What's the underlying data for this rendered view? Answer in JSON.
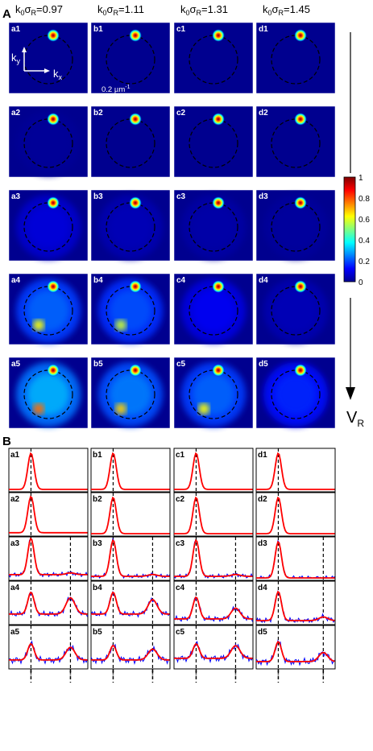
{
  "panel_a": {
    "label": "A",
    "columns": [
      {
        "id": "a",
        "k0sigmaR": "0.97"
      },
      {
        "id": "b",
        "k0sigmaR": "1.11"
      },
      {
        "id": "c",
        "k0sigmaR": "1.31"
      },
      {
        "id": "d",
        "k0sigmaR": "1.45"
      }
    ],
    "rows": [
      "1",
      "2",
      "3",
      "4",
      "5"
    ],
    "axis_ky": "k",
    "axis_ky_sub": "y",
    "axis_kx": "k",
    "axis_kx_sub": "x",
    "scalebar": "0.2 µm",
    "scalebar_sup": "-1",
    "arrow_label": "V",
    "arrow_label_sub": "R",
    "colorbar": {
      "ticks": [
        "1",
        "0.8",
        "0.6",
        "0.4",
        "0.2",
        "0"
      ],
      "colors": [
        "#7f0000",
        "#ff0000",
        "#ff8000",
        "#ffff00",
        "#80ff80",
        "#00ffff",
        "#0080ff",
        "#0000ff",
        "#00008f"
      ]
    },
    "background_level": [
      [
        0.0,
        0.0,
        0.0,
        0.0
      ],
      [
        0.02,
        0.0,
        0.0,
        0.0
      ],
      [
        0.15,
        0.08,
        0.05,
        0.03
      ],
      [
        0.45,
        0.4,
        0.2,
        0.08
      ],
      [
        0.6,
        0.5,
        0.45,
        0.3
      ]
    ]
  },
  "panel_b": {
    "label": "B",
    "rows": [
      "1",
      "2",
      "3",
      "4",
      "5"
    ],
    "columns": [
      "a",
      "b",
      "c",
      "d"
    ],
    "line_colors": {
      "data": "#0000ff",
      "fit": "#ff0000",
      "marker": "#000000"
    },
    "side_peak_height": [
      [
        0.0,
        0.0,
        0.0,
        0.0
      ],
      [
        0.0,
        0.0,
        0.0,
        0.0
      ],
      [
        0.05,
        0.05,
        0.05,
        0.0
      ],
      [
        0.45,
        0.4,
        0.3,
        0.1
      ],
      [
        0.35,
        0.3,
        0.35,
        0.25
      ]
    ],
    "main_peak_height": [
      [
        1.0,
        1.0,
        1.0,
        1.0
      ],
      [
        1.0,
        1.0,
        1.0,
        1.0
      ],
      [
        1.0,
        1.0,
        1.0,
        1.0
      ],
      [
        0.6,
        0.6,
        0.6,
        0.8
      ],
      [
        0.45,
        0.4,
        0.4,
        0.55
      ]
    ],
    "baseline": [
      [
        0.0,
        0.0,
        0.0,
        0.0
      ],
      [
        0.03,
        0.0,
        0.0,
        0.0
      ],
      [
        0.1,
        0.05,
        0.05,
        0.0
      ],
      [
        0.25,
        0.25,
        0.1,
        0.05
      ],
      [
        0.2,
        0.2,
        0.25,
        0.15
      ]
    ]
  }
}
